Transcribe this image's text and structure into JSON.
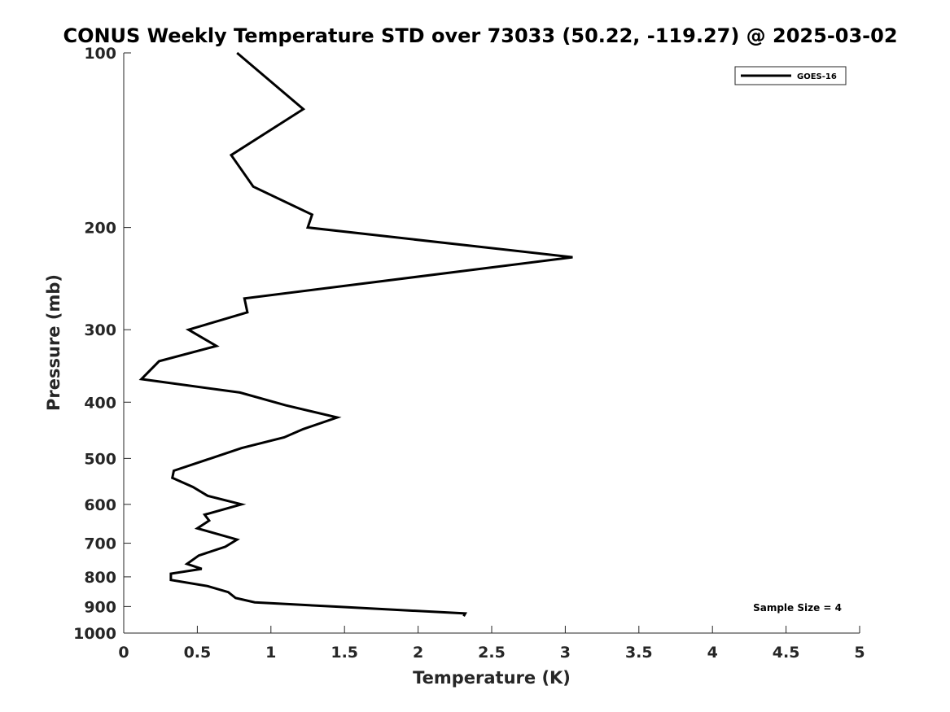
{
  "chart_data": {
    "type": "line",
    "title": "CONUS Weekly Temperature STD over 73033 (50.22, -119.27) @ 2025-03-02",
    "xlabel": "Temperature (K)",
    "ylabel": "Pressure (mb)",
    "xlim": [
      0,
      5
    ],
    "ylim": [
      1000,
      100
    ],
    "yscale": "log",
    "x_ticks": [
      0,
      0.5,
      1,
      1.5,
      2,
      2.5,
      3,
      3.5,
      4,
      4.5,
      5
    ],
    "x_tick_labels": [
      "0",
      "0.5",
      "1",
      "1.5",
      "2",
      "2.5",
      "3",
      "3.5",
      "4",
      "4.5",
      "5"
    ],
    "y_ticks": [
      100,
      200,
      300,
      400,
      500,
      600,
      700,
      800,
      900,
      1000
    ],
    "y_tick_labels": [
      "100",
      "200",
      "300",
      "400",
      "500",
      "600",
      "700",
      "800",
      "900",
      "1000"
    ],
    "grid": false,
    "legend_position": "top-right",
    "annotation": "Sample Size = 4",
    "series": [
      {
        "name": "GOES-16",
        "color": "#000000",
        "points": [
          [
            0.77,
            100
          ],
          [
            1.22,
            125
          ],
          [
            0.73,
            150
          ],
          [
            0.88,
            170
          ],
          [
            1.28,
            190
          ],
          [
            1.25,
            200
          ],
          [
            3.05,
            225
          ],
          [
            0.82,
            265
          ],
          [
            0.84,
            280
          ],
          [
            0.44,
            300
          ],
          [
            0.63,
            320
          ],
          [
            0.24,
            340
          ],
          [
            0.12,
            365
          ],
          [
            0.79,
            385
          ],
          [
            1.1,
            405
          ],
          [
            1.45,
            425
          ],
          [
            1.22,
            445
          ],
          [
            1.09,
            460
          ],
          [
            0.8,
            480
          ],
          [
            0.59,
            500
          ],
          [
            0.34,
            525
          ],
          [
            0.33,
            540
          ],
          [
            0.47,
            560
          ],
          [
            0.57,
            580
          ],
          [
            0.8,
            600
          ],
          [
            0.55,
            625
          ],
          [
            0.58,
            640
          ],
          [
            0.5,
            660
          ],
          [
            0.77,
            690
          ],
          [
            0.69,
            710
          ],
          [
            0.51,
            735
          ],
          [
            0.43,
            760
          ],
          [
            0.53,
            775
          ],
          [
            0.32,
            790
          ],
          [
            0.32,
            810
          ],
          [
            0.57,
            830
          ],
          [
            0.71,
            850
          ],
          [
            0.76,
            870
          ],
          [
            0.89,
            885
          ],
          [
            1.43,
            900
          ],
          [
            2.32,
            925
          ],
          [
            2.31,
            935
          ]
        ]
      }
    ]
  }
}
